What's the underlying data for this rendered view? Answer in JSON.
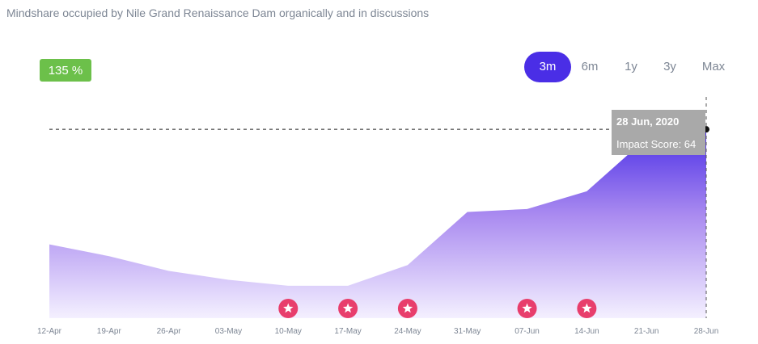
{
  "header": {
    "subtitle": "Mindshare occupied by Nile Grand Renaissance Dam organically and in discussions",
    "badge": "135 %",
    "badge_color": "#6cc04a"
  },
  "ranges": [
    {
      "label": "3m",
      "active": true
    },
    {
      "label": "6m",
      "active": false
    },
    {
      "label": "1y",
      "active": false
    },
    {
      "label": "3y",
      "active": false
    },
    {
      "label": "Max",
      "active": false
    }
  ],
  "tooltip": {
    "date": "28 Jun, 2020",
    "score": "Impact Score: 64"
  },
  "chart_data": {
    "type": "area",
    "x": [
      "12-Apr",
      "19-Apr",
      "26-Apr",
      "03-May",
      "10-May",
      "17-May",
      "24-May",
      "31-May",
      "07-Jun",
      "14-Jun",
      "21-Jun",
      "28-Jun"
    ],
    "series": [
      {
        "values": [
          25,
          21,
          16,
          13,
          11,
          11,
          18,
          36,
          37,
          43,
          61,
          64
        ]
      }
    ],
    "ylim": [
      0,
      75
    ],
    "grid": false,
    "markers": [
      "10-May",
      "17-May",
      "24-May",
      "07-Jun",
      "14-Jun"
    ],
    "highlight": "28-Jun",
    "colors": {
      "area_top": "#4a2ee6",
      "area_bottom": "#f4f0ff",
      "marker": "#e83e6c",
      "tooltip_bg": "#a9a9a9"
    }
  }
}
